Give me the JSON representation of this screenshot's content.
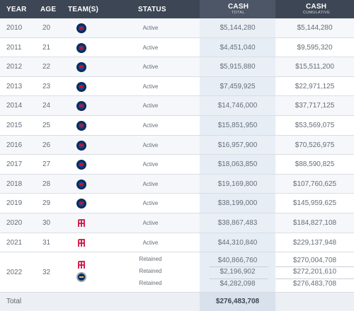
{
  "headers": {
    "year": "YEAR",
    "age": "AGE",
    "teams": "TEAM(S)",
    "status": "STATUS",
    "cash_total": "CASH",
    "cash_total_sub": "TOTAL",
    "cash_cumulative": "CASH",
    "cash_cumulative_sub": "CUMULATIVE"
  },
  "rows": [
    {
      "year": "2010",
      "age": "20",
      "team": "wizards-logo",
      "status": "Active",
      "cash": "$5,144,280",
      "cumulative": "$5,144,280"
    },
    {
      "year": "2011",
      "age": "21",
      "team": "wizards-logo",
      "status": "Active",
      "cash": "$4,451,040",
      "cumulative": "$9,595,320"
    },
    {
      "year": "2012",
      "age": "22",
      "team": "wizards-logo",
      "status": "Active",
      "cash": "$5,915,880",
      "cumulative": "$15,511,200"
    },
    {
      "year": "2013",
      "age": "23",
      "team": "wizards-logo",
      "status": "Active",
      "cash": "$7,459,925",
      "cumulative": "$22,971,125"
    },
    {
      "year": "2014",
      "age": "24",
      "team": "wizards-logo",
      "status": "Active",
      "cash": "$14,746,000",
      "cumulative": "$37,717,125"
    },
    {
      "year": "2015",
      "age": "25",
      "team": "wizards-logo",
      "status": "Active",
      "cash": "$15,851,950",
      "cumulative": "$53,569,075"
    },
    {
      "year": "2016",
      "age": "26",
      "team": "wizards-logo",
      "status": "Active",
      "cash": "$16,957,900",
      "cumulative": "$70,526,975"
    },
    {
      "year": "2017",
      "age": "27",
      "team": "wizards-logo",
      "status": "Active",
      "cash": "$18,063,850",
      "cumulative": "$88,590,825"
    },
    {
      "year": "2018",
      "age": "28",
      "team": "wizards-logo",
      "status": "Active",
      "cash": "$19,169,800",
      "cumulative": "$107,760,625"
    },
    {
      "year": "2019",
      "age": "29",
      "team": "wizards-logo",
      "status": "Active",
      "cash": "$38,199,000",
      "cumulative": "$145,959,625"
    },
    {
      "year": "2020",
      "age": "30",
      "team": "rockets-logo",
      "status": "Active",
      "cash": "$38,867,483",
      "cumulative": "$184,827,108"
    },
    {
      "year": "2021",
      "age": "31",
      "team": "rockets-logo",
      "status": "Active",
      "cash": "$44,310,840",
      "cumulative": "$229,137,948"
    }
  ],
  "retained_row": {
    "year": "2022",
    "age": "32",
    "teams": [
      "rockets-logo",
      "pacers-logo"
    ],
    "entries": [
      {
        "status": "Retained",
        "cash": "$40,866,760",
        "cumulative": "$270,004,708"
      },
      {
        "status": "Retained",
        "cash": "$2,196,902",
        "cumulative": "$272,201,610"
      },
      {
        "status": "Retained",
        "cash": "$4,282,098",
        "cumulative": "$276,483,708"
      }
    ]
  },
  "total": {
    "label": "Total",
    "value": "$276,483,708"
  },
  "colors": {
    "header_bg": "#3d4654",
    "cash_column_bg": "#e7edf5",
    "wizards_navy": "#0c2b5b",
    "rockets_red": "#ce1141",
    "pacers_navy": "#002d62"
  }
}
